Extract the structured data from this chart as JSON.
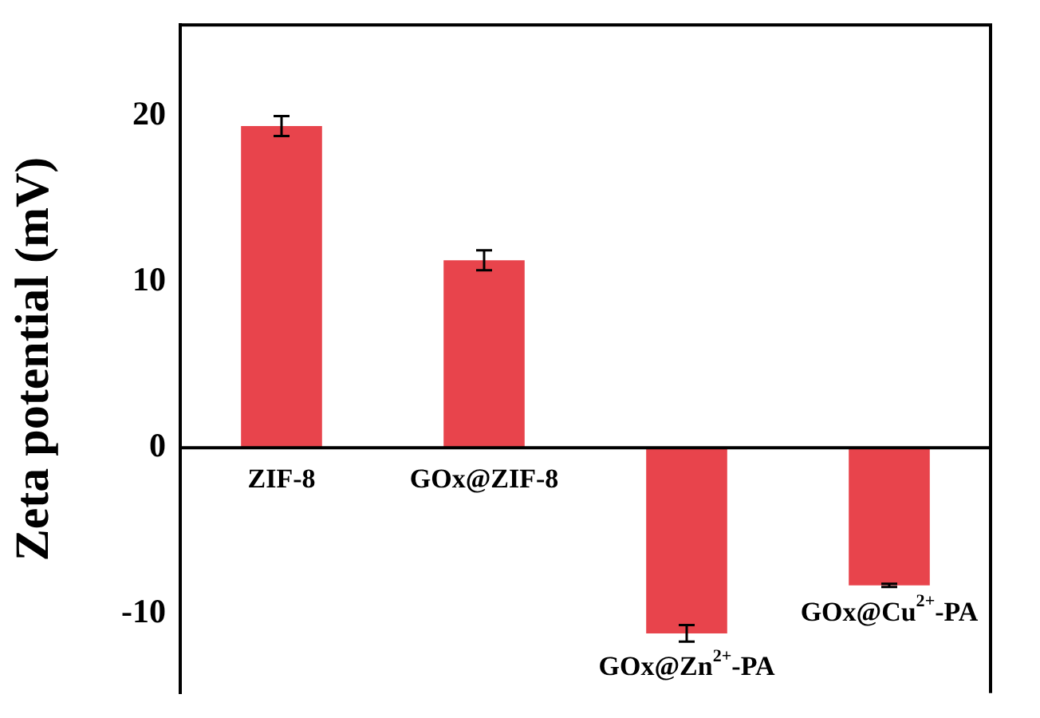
{
  "chart_data": {
    "type": "bar",
    "ylabel": "Zeta potential (mV)",
    "categories": [
      "ZIF-8",
      "GOx@ZIF-8",
      "GOx@Zn$^{2+}$-PA",
      "GOx@Cu$^{2+}$-PA"
    ],
    "values": [
      19.4,
      11.3,
      -11.2,
      -8.3
    ],
    "errors": [
      0.6,
      0.6,
      0.5,
      0.1
    ],
    "color": "#e8444c",
    "ylim": [
      -14.8,
      25.5
    ],
    "yticks": [
      -10,
      0,
      10,
      20
    ],
    "grid": false,
    "legend": false
  }
}
